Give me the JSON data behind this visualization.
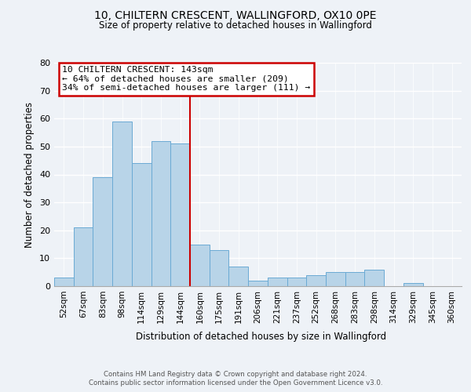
{
  "title": "10, CHILTERN CRESCENT, WALLINGFORD, OX10 0PE",
  "subtitle": "Size of property relative to detached houses in Wallingford",
  "xlabel": "Distribution of detached houses by size in Wallingford",
  "ylabel": "Number of detached properties",
  "bin_labels": [
    "52sqm",
    "67sqm",
    "83sqm",
    "98sqm",
    "114sqm",
    "129sqm",
    "144sqm",
    "160sqm",
    "175sqm",
    "191sqm",
    "206sqm",
    "221sqm",
    "237sqm",
    "252sqm",
    "268sqm",
    "283sqm",
    "298sqm",
    "314sqm",
    "329sqm",
    "345sqm",
    "360sqm"
  ],
  "bar_values": [
    3,
    21,
    39,
    59,
    44,
    52,
    51,
    15,
    13,
    7,
    2,
    3,
    3,
    4,
    5,
    5,
    6,
    0,
    1,
    0,
    0
  ],
  "bar_color": "#b8d4e8",
  "bar_edge_color": "#6aaad4",
  "vline_x": 6.5,
  "vline_color": "#cc0000",
  "annotation_line1": "10 CHILTERN CRESCENT: 143sqm",
  "annotation_line2": "← 64% of detached houses are smaller (209)",
  "annotation_line3": "34% of semi-detached houses are larger (111) →",
  "footer_line1": "Contains HM Land Registry data © Crown copyright and database right 2024.",
  "footer_line2": "Contains public sector information licensed under the Open Government Licence v3.0.",
  "ylim": [
    0,
    80
  ],
  "yticks": [
    0,
    10,
    20,
    30,
    40,
    50,
    60,
    70,
    80
  ],
  "bg_color": "#eef2f7",
  "grid_color": "#ffffff"
}
